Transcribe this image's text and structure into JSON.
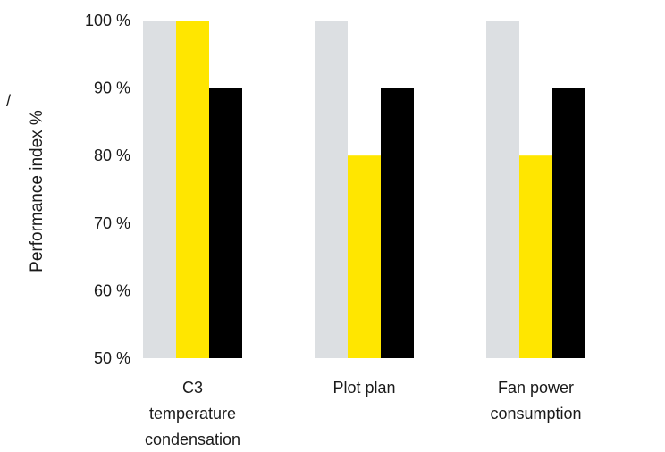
{
  "chart_data": {
    "type": "bar",
    "title": "",
    "xlabel": "",
    "ylabel": "Performance index %",
    "ylim": [
      50,
      100
    ],
    "yticks": [
      50,
      60,
      70,
      80,
      90,
      100
    ],
    "ytick_labels": [
      "50 %",
      "60 %",
      "70 %",
      "80 %",
      "90 %",
      "100 %"
    ],
    "categories": [
      [
        "C3",
        "temperature",
        "condensation"
      ],
      [
        "Plot plan"
      ],
      [
        "Fan power",
        "consumption"
      ]
    ],
    "series": [
      {
        "color": "#dcdfe2",
        "values": [
          100,
          100,
          100
        ]
      },
      {
        "color": "#ffe600",
        "values": [
          100,
          80,
          80
        ]
      },
      {
        "color": "#000000",
        "values": [
          90,
          90,
          90
        ]
      }
    ],
    "grid": false,
    "legend": "none",
    "stray_mark": "/"
  }
}
